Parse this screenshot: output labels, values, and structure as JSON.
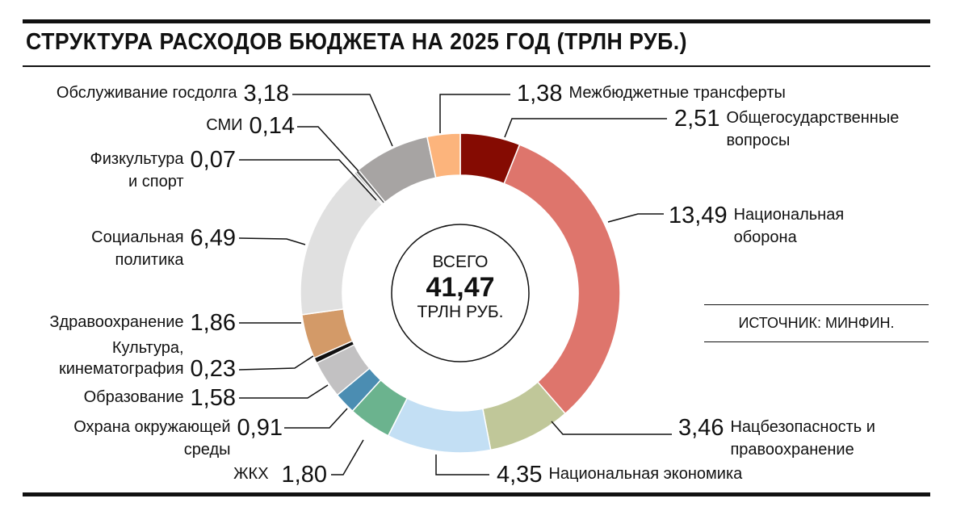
{
  "chart_data": {
    "type": "pie",
    "title": "СТРУКТУРА РАСХОДОВ БЮДЖЕТА НА 2025 ГОД (ТРЛН РУБ.)",
    "total": {
      "label_top": "ВСЕГО",
      "value": "41,47",
      "unit": "ТРЛН РУБ."
    },
    "source": "ИСТОЧНИК: МИНФИН.",
    "slices": [
      {
        "name": "Общегосударственные вопросы",
        "value": 2.51,
        "label": "2,51",
        "color": "#850b02"
      },
      {
        "name": "Национальная оборона",
        "value": 13.49,
        "label": "13,49",
        "color": "#de756c"
      },
      {
        "name": "Нацбезопасность и правоохранение",
        "value": 3.46,
        "label": "3,46",
        "color": "#c0c799"
      },
      {
        "name": "Национальная экономика",
        "value": 4.35,
        "label": "4,35",
        "color": "#c3dff4"
      },
      {
        "name": "ЖКХ",
        "value": 1.8,
        "label": "1,80",
        "color": "#6bb38e"
      },
      {
        "name": "Охрана окружающей среды",
        "value": 0.91,
        "label": "0,91",
        "color": "#4b8db2"
      },
      {
        "name": "Образование",
        "value": 1.58,
        "label": "1,58",
        "color": "#c2c1c2"
      },
      {
        "name": "Культура, кинематография",
        "value": 0.23,
        "label": "0,23",
        "color": "#111111"
      },
      {
        "name": "Здравоохранение",
        "value": 1.86,
        "label": "1,86",
        "color": "#d39a68"
      },
      {
        "name": "Социальная политика",
        "value": 6.49,
        "label": "6,49",
        "color": "#e0e0e0"
      },
      {
        "name": "Физкультура и спорт",
        "value": 0.07,
        "label": "0,07",
        "color": "#333333"
      },
      {
        "name": "СМИ",
        "value": 0.14,
        "label": "0,14",
        "color": "#555555"
      },
      {
        "name": "Обслуживание госдолга",
        "value": 3.18,
        "label": "3,18",
        "color": "#a7a4a3"
      },
      {
        "name": "Межбюджетные трансферты",
        "value": 1.38,
        "label": "1,38",
        "color": "#fcb47c"
      }
    ]
  }
}
